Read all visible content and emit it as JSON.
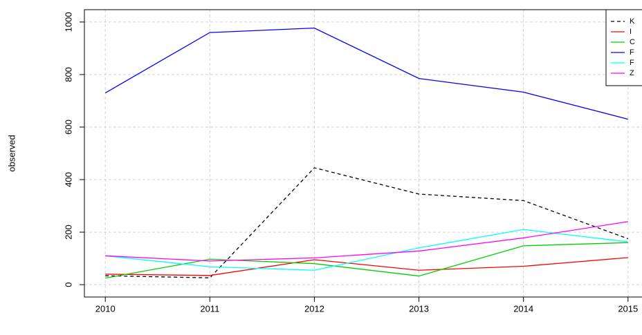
{
  "chart_data": {
    "type": "line",
    "y_label": "observed",
    "x": [
      2010,
      2011,
      2012,
      2013,
      2014,
      2015
    ],
    "xlim": [
      2009.8,
      2015.2
    ],
    "xticks": [
      2010,
      2011,
      2012,
      2013,
      2014,
      2015
    ],
    "ylim": [
      -47,
      1047
    ],
    "yticks": [
      0,
      200,
      400,
      600,
      800,
      1000
    ],
    "grid": true,
    "legend": "topright",
    "series": [
      {
        "name": "K",
        "color": "#000000",
        "linestyle": "dashed",
        "values": [
          34,
          26,
          445,
          345,
          320,
          175
        ]
      },
      {
        "name": "I",
        "color": "#ff0000",
        "linestyle": "solid",
        "values": [
          40,
          35,
          95,
          55,
          70,
          103
        ]
      },
      {
        "name": "C",
        "color": "#00cd00",
        "linestyle": "solid",
        "values": [
          25,
          97,
          80,
          33,
          148,
          160
        ]
      },
      {
        "name": "F",
        "color": "#0000ff",
        "linestyle": "solid",
        "values": [
          730,
          960,
          977,
          785,
          733,
          630
        ]
      },
      {
        "name": "F",
        "color": "#00ffff",
        "linestyle": "solid",
        "values": [
          110,
          68,
          55,
          140,
          210,
          163
        ]
      },
      {
        "name": "Z",
        "color": "#ff00ff",
        "linestyle": "solid",
        "values": [
          110,
          90,
          102,
          128,
          178,
          240
        ]
      }
    ]
  }
}
